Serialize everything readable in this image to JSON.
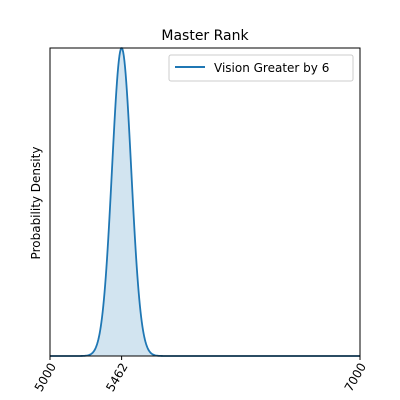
{
  "chart_data": {
    "type": "line",
    "title": "Master Rank",
    "xlabel": "",
    "ylabel": "Probability Density",
    "xlim": [
      5000,
      7000
    ],
    "ylim": [
      0,
      1.2
    ],
    "xticks": [
      5000,
      5462,
      7000
    ],
    "xtick_labels": [
      "5000",
      "5462",
      "7000"
    ],
    "tick_rotation_deg": 60,
    "grid": false,
    "legend_position": "top-right",
    "series": [
      {
        "name": "Vision Greater by 6",
        "color": "#1f77b4",
        "fill_color": "#1f77b4",
        "fill_opacity": 0.2,
        "distribution": "normal",
        "mean": 5462,
        "std": 62,
        "x": [
          5000,
          5200,
          5250,
          5280,
          5300,
          5320,
          5340,
          5360,
          5380,
          5400,
          5420,
          5440,
          5462,
          5480,
          5500,
          5520,
          5540,
          5560,
          5580,
          5600,
          5620,
          5640,
          5680,
          5750,
          7000
        ],
        "y": [
          0,
          0.0001,
          0.0029,
          0.0134,
          0.0327,
          0.0722,
          0.1451,
          0.2646,
          0.4388,
          0.6615,
          0.9057,
          1.1228,
          1.2,
          1.1728,
          1.0312,
          0.8091,
          0.5667,
          0.3536,
          0.1966,
          0.0973,
          0.0427,
          0.0166,
          0.0018,
          0.0,
          0
        ]
      }
    ]
  }
}
